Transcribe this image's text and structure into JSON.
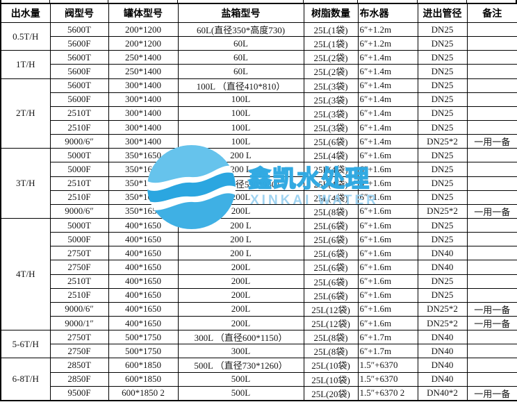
{
  "table": {
    "header": {
      "columns": [
        {
          "label": "出水量"
        },
        {
          "label": "阀型号"
        },
        {
          "label": "罐体型号"
        },
        {
          "label": "盐箱型号"
        },
        {
          "label": "树脂数量"
        },
        {
          "label": "布水器"
        },
        {
          "label": "进出管径"
        },
        {
          "label": "备注"
        }
      ]
    },
    "groups": [
      {
        "output": "0.5T/H",
        "rows": [
          [
            "5600T",
            "200*1200",
            "60L(直径350*高度730)",
            "25L(1袋)",
            "6″+1.2m",
            "DN25",
            ""
          ],
          [
            "5600F",
            "200*1200",
            "60L",
            "25L(1袋)",
            "6″+1.2m",
            "DN25",
            ""
          ]
        ]
      },
      {
        "output": "1T/H",
        "rows": [
          [
            "5600T",
            "250*1400",
            "60L",
            "25L(2袋)",
            "6″+1.4m",
            "DN25",
            ""
          ],
          [
            "5600F",
            "250*1400",
            "60L",
            "25L(2袋)",
            "6″+1.4m",
            "DN25",
            ""
          ]
        ]
      },
      {
        "output": "2T/H",
        "rows": [
          [
            "5600T",
            "300*1400",
            "100L （直径410*810）",
            "25L(3袋)",
            "6″+1.4m",
            "DN25",
            ""
          ],
          [
            "5600F",
            "300*1400",
            "100L",
            "25L(3袋)",
            "6″+1.4m",
            "DN25",
            ""
          ],
          [
            "2510T",
            "300*1400",
            "100L",
            "25L(3袋)",
            "6″+1.4m",
            "DN25",
            ""
          ],
          [
            "2510F",
            "300*1400",
            "100L",
            "25L(3袋)",
            "6″+1.4m",
            "DN25",
            ""
          ],
          [
            "9000/6″",
            "300*1400",
            "100L",
            "25L(6袋)",
            "6″+1.4m",
            "DN25*2",
            "一用一备"
          ]
        ]
      },
      {
        "output": "3T/H",
        "rows": [
          [
            "5000T",
            "350*1650",
            "200 L",
            "25L(4袋)",
            "6″+1.6m",
            "DN25",
            ""
          ],
          [
            "5000F",
            "350*1650",
            "200 L",
            "25L(4袋)",
            "6″+1.6m",
            "DN25",
            ""
          ],
          [
            "2510T",
            "350*1650",
            "200L （直径530*930）",
            "25L(4袋)",
            "6″+1.6m",
            "DN25",
            ""
          ],
          [
            "2510F",
            "350*1650",
            "200L",
            "25L(4袋)",
            "6″+1.6m",
            "DN25",
            ""
          ],
          [
            "9000/6″",
            "350*1650",
            "200L",
            "25L(8袋)",
            "6″+1.6m",
            "DN25*2",
            "一用一备"
          ]
        ]
      },
      {
        "output": "4T/H",
        "rows": [
          [
            "5000T",
            "400*1650",
            "200 L",
            "25L(6袋)",
            "6″+1.6m",
            "DN25",
            ""
          ],
          [
            "5000F",
            "400*1650",
            "200 L",
            "25L(6袋)",
            "6″+1.6m",
            "DN25",
            ""
          ],
          [
            "2750T",
            "400*1650",
            "200 L",
            "25L(6袋)",
            "6″+1.6m",
            "DN40",
            ""
          ],
          [
            "2750F",
            "400*1650",
            "200L",
            "25L(6袋)",
            "6″+1.6m",
            "DN40",
            ""
          ],
          [
            "2510T",
            "400*1650",
            "200L",
            "25L(6袋)",
            "6″+1.6m",
            "DN25",
            ""
          ],
          [
            "2510F",
            "400*1650",
            "200L",
            "25L(6袋)",
            "6″+1.6m",
            "DN25",
            ""
          ],
          [
            "9000/6″",
            "400*1650",
            "200L",
            "25L(12袋)",
            "6″+1.6m",
            "DN25*2",
            "一用一备"
          ],
          [
            "9000/1″",
            "400*1650",
            "200L",
            "25L(12袋)",
            "6″+1.6m",
            "DN25*2",
            "一用一备"
          ]
        ]
      },
      {
        "output": "5-6T/H",
        "rows": [
          [
            "2750T",
            "500*1750",
            "300L （直径600*1150）",
            "25L(8袋)",
            "6″+1.7m",
            "DN40",
            ""
          ],
          [
            "2750F",
            "500*1750",
            "300L",
            "25L(8袋)",
            "6″+1.7m",
            "DN40",
            ""
          ]
        ]
      },
      {
        "output": "6-8T/H",
        "rows": [
          [
            "2850T",
            "600*1850",
            "500L （直径730*1260）",
            "25L(10袋)",
            "1.5″+6370",
            "DN40",
            ""
          ],
          [
            "2850F",
            "600*1850",
            "500L",
            "25L(10袋)",
            "1.5″+6370",
            "DN40",
            ""
          ],
          [
            "9500F",
            "600*1850 2",
            "500L",
            "25L(20袋)",
            "1.5″+6370 2",
            "DN40*2",
            "一用一备"
          ]
        ]
      }
    ]
  },
  "watermark": {
    "text_cn": "鑫凯水处理",
    "text_en": "XINKAI WATER",
    "globe_icon": "water-wave-globe-icon",
    "colors": {
      "light_blue": "#66c3ec",
      "medium_blue": "#2ba6e0",
      "text_blue": "#9ad1f0"
    }
  },
  "style": {
    "border_color": "#000000",
    "text_color": "#151515",
    "background": "#ffffff"
  }
}
